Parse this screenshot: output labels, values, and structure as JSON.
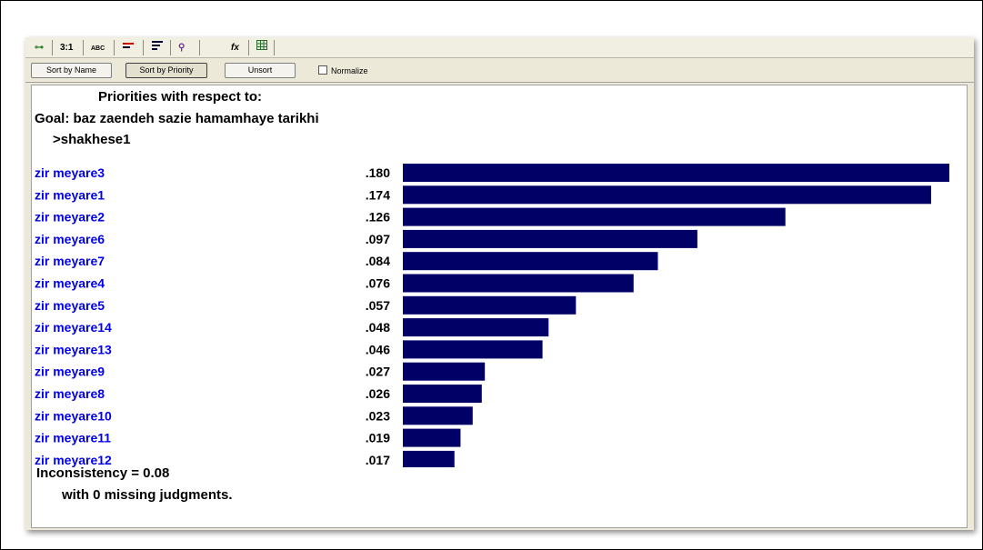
{
  "tabs": [
    "3:1",
    "ABC",
    "fx"
  ],
  "toolbar": {
    "sort_by_name": "Sort by Name",
    "sort_by_priority": "Sort by Priority",
    "unsort": "Unsort",
    "normalize": "Normalize"
  },
  "header": {
    "line1": "Priorities with respect to:",
    "line2": "Goal: baz zaendeh sazie hamamhaye tarikhi",
    "line3": ">shakhese1"
  },
  "colors": {
    "bar": "#000066",
    "label": "#0000ee",
    "value": "#000000"
  },
  "chart_data": {
    "type": "bar",
    "orientation": "horizontal",
    "title": "",
    "xlabel": "",
    "ylabel": "",
    "xlim": [
      0,
      0.18
    ],
    "categories": [
      "zir meyare3",
      "zir meyare1",
      "zir meyare2",
      "zir meyare6",
      "zir meyare7",
      "zir meyare4",
      "zir meyare5",
      "zir meyare14",
      "zir meyare13",
      "zir meyare9",
      "zir meyare8",
      "zir meyare10",
      "zir meyare11",
      "zir meyare12"
    ],
    "values": [
      0.18,
      0.174,
      0.126,
      0.097,
      0.084,
      0.076,
      0.057,
      0.048,
      0.046,
      0.027,
      0.026,
      0.023,
      0.019,
      0.017
    ],
    "value_labels": [
      ".180",
      ".174",
      ".126",
      ".097",
      ".084",
      ".076",
      ".057",
      ".048",
      ".046",
      ".027",
      ".026",
      ".023",
      ".019",
      ".017"
    ]
  },
  "footer": {
    "inconsistency": "Inconsistency = 0.08",
    "missing": "with 0  missing judgments."
  }
}
